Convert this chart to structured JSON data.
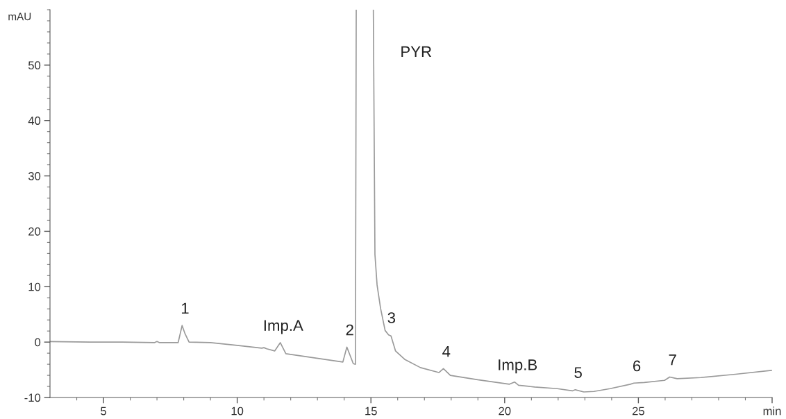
{
  "chart_data": {
    "type": "line",
    "ylabel": "mAU",
    "xlim": [
      3,
      30
    ],
    "ylim": [
      -10,
      60
    ],
    "xticks": [
      {
        "value": 4,
        "label": null
      },
      5,
      {
        "value": 6,
        "label": null
      },
      {
        "value": 7,
        "label": null
      },
      {
        "value": 8,
        "label": null
      },
      {
        "value": 9,
        "label": null
      },
      10,
      {
        "value": 11,
        "label": null
      },
      {
        "value": 12,
        "label": null
      },
      {
        "value": 13,
        "label": null
      },
      {
        "value": 14,
        "label": null
      },
      15,
      {
        "value": 16,
        "label": null
      },
      {
        "value": 17,
        "label": null
      },
      {
        "value": 18,
        "label": null
      },
      {
        "value": 19,
        "label": null
      },
      20,
      {
        "value": 21,
        "label": null
      },
      {
        "value": 22,
        "label": null
      },
      {
        "value": 23,
        "label": null
      },
      {
        "value": 24,
        "label": null
      },
      25,
      {
        "value": 26,
        "label": null
      },
      {
        "value": 27,
        "label": null
      },
      {
        "value": 28,
        "label": null
      },
      {
        "value": 29,
        "label": null
      },
      {
        "value": 30,
        "label": "min"
      }
    ],
    "yticks": [
      -10,
      {
        "value": -8,
        "label": null
      },
      {
        "value": -6,
        "label": null
      },
      {
        "value": -4,
        "label": null
      },
      {
        "value": -2,
        "label": null
      },
      0,
      {
        "value": 2,
        "label": null
      },
      {
        "value": 4,
        "label": null
      },
      {
        "value": 6,
        "label": null
      },
      {
        "value": 8,
        "label": null
      },
      10,
      {
        "value": 12,
        "label": null
      },
      {
        "value": 14,
        "label": null
      },
      {
        "value": 16,
        "label": null
      },
      {
        "value": 18,
        "label": null
      },
      20,
      {
        "value": 22,
        "label": null
      },
      {
        "value": 24,
        "label": null
      },
      {
        "value": 26,
        "label": null
      },
      {
        "value": 28,
        "label": null
      },
      30,
      {
        "value": 32,
        "label": null
      },
      {
        "value": 34,
        "label": null
      },
      {
        "value": 36,
        "label": null
      },
      {
        "value": 38,
        "label": null
      },
      40,
      {
        "value": 42,
        "label": null
      },
      {
        "value": 44,
        "label": null
      },
      {
        "value": 46,
        "label": null
      },
      {
        "value": 48,
        "label": null
      },
      50,
      {
        "value": 52,
        "label": null
      },
      {
        "value": 54,
        "label": null
      },
      {
        "value": 56,
        "label": null
      },
      {
        "value": 58,
        "label": null
      },
      {
        "value": 60,
        "label": null
      }
    ],
    "series": [
      {
        "color": "#9a9a9a",
        "x": [
          3.0,
          4.5,
          5.7,
          6.9,
          7.0,
          7.1,
          7.79,
          7.94,
          8.05,
          8.2,
          9.0,
          10.0,
          10.92,
          11.0,
          11.1,
          11.4,
          11.61,
          11.82,
          13.95,
          14.1,
          14.34,
          14.42,
          14.45,
          14.77,
          15.09,
          15.15,
          15.23,
          15.36,
          15.53,
          15.66,
          15.75,
          15.92,
          16.26,
          16.85,
          17.54,
          17.71,
          17.97,
          18.99,
          20.18,
          20.37,
          20.52,
          21.12,
          21.97,
          22.53,
          22.64,
          22.96,
          23.34,
          23.94,
          24.7,
          24.83,
          25.22,
          25.98,
          26.17,
          26.45,
          27.34,
          28.63,
          29.98
        ],
        "values": [
          0.1,
          0.0,
          0.0,
          -0.1,
          0.1,
          -0.1,
          -0.1,
          3,
          1.5,
          0.0,
          -0.1,
          -0.6,
          -1.1,
          -1.0,
          -1.2,
          -1.6,
          -0.1,
          -2.1,
          -3.6,
          -0.9,
          -3.9,
          -4.0,
          60,
          null,
          60,
          15.8,
          10.3,
          6.1,
          2.1,
          1.3,
          1.1,
          -1.6,
          -3.1,
          -4.6,
          -5.5,
          -4.8,
          -6.0,
          -6.8,
          -7.6,
          -7.2,
          -7.8,
          -8.1,
          -8.4,
          -8.8,
          -8.6,
          -9.0,
          -8.9,
          -8.4,
          -7.6,
          -7.4,
          -7.3,
          -6.9,
          -6.3,
          -6.6,
          -6.4,
          -5.8,
          -5.1
        ]
      }
    ],
    "annotations": [
      {
        "text": "1",
        "x": 7.94,
        "y": 3
      },
      {
        "text": "Imp.A",
        "x": 11.61,
        "y": -0.1
      },
      {
        "text": "2",
        "x": 14.1,
        "y": -0.9
      },
      "PYR",
      {
        "text": "3",
        "x": 15.66,
        "y": 1.3
      },
      {
        "text": "4",
        "x": 17.71,
        "y": -4.8
      },
      {
        "text": "Imp.B",
        "x": 20.37,
        "y": -7.2
      },
      {
        "text": "5",
        "x": 22.64,
        "y": -8.6
      },
      {
        "text": "6",
        "x": 24.83,
        "y": -7.4
      },
      {
        "text": "7",
        "x": 26.17,
        "y": -6.3
      }
    ]
  }
}
